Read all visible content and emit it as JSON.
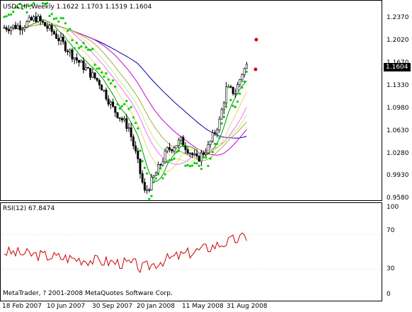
{
  "chart": {
    "symbol_header": "USDCHF,Weekly  1.1622 1.1703 1.1519 1.1604",
    "current_price": "1.1604",
    "price_axis": [
      {
        "label": "1.2370",
        "value": 1.237
      },
      {
        "label": "1.2020",
        "value": 1.202
      },
      {
        "label": "1.1670",
        "value": 1.167
      },
      {
        "label": "1.1330",
        "value": 1.133
      },
      {
        "label": "1.0980",
        "value": 1.098
      },
      {
        "label": "1.0630",
        "value": 1.063
      },
      {
        "label": "1.0280",
        "value": 1.028
      },
      {
        "label": "0.9930",
        "value": 0.993
      },
      {
        "label": "0.9580",
        "value": 0.958
      }
    ],
    "date_axis": [
      "18 Feb 2007",
      "10 Jun 2007",
      "30 Sep 2007",
      "20 Jan 2008",
      "11 May 2008",
      "31 Aug 2008"
    ]
  },
  "rsi": {
    "title": "RSI(12) 67.8474",
    "levels": [
      {
        "label": "100",
        "value": 100
      },
      {
        "label": "70",
        "value": 70
      },
      {
        "label": "30",
        "value": 30
      },
      {
        "label": "0",
        "value": 0
      }
    ]
  },
  "footer": {
    "copyright": "MetaTrader, ? 2001-2008 MetaQuotes Software Corp."
  },
  "colors": {
    "bull_candle": "#ffffff",
    "bear_candle": "#000000",
    "parabolic_sar": "#00cc00",
    "rsi_line": "#cc0000",
    "ma_blue": "#0000aa",
    "ma_magenta": "#cc00cc",
    "ma_green": "#009900"
  }
}
